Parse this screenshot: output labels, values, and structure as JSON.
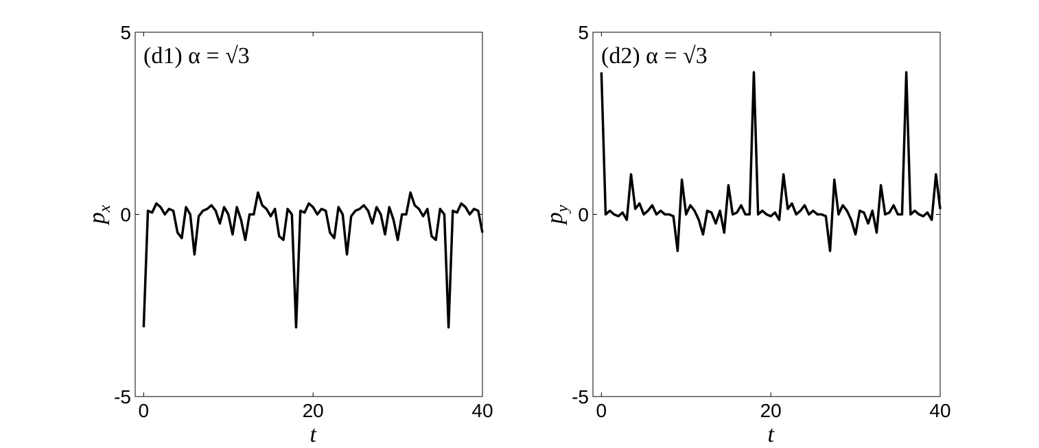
{
  "chart_data": [
    {
      "type": "line",
      "title": "(d1) α = √3",
      "xlabel": "t",
      "ylabel": {
        "text": "p",
        "subscript": "x"
      },
      "color": "#000000",
      "xlim": [
        -1,
        40
      ],
      "ylim": [
        -5,
        5
      ],
      "xticks": [
        0,
        20,
        40
      ],
      "yticks": [
        -5,
        0,
        5
      ],
      "x": [
        0,
        0.5,
        1,
        1.5,
        2,
        2.5,
        3,
        3.5,
        4,
        4.5,
        5,
        5.5,
        6,
        6.5,
        7,
        7.5,
        8,
        8.5,
        9,
        9.5,
        10,
        10.5,
        11,
        11.5,
        12,
        12.5,
        13,
        13.5,
        14,
        14.5,
        15,
        15.5,
        16,
        16.5,
        17,
        17.5,
        18,
        18.5,
        19,
        19.5,
        20,
        20.5,
        21,
        21.5,
        22,
        22.5,
        23,
        23.5,
        24,
        24.5,
        25,
        25.5,
        26,
        26.5,
        27,
        27.5,
        28,
        28.5,
        29,
        29.5,
        30,
        30.5,
        31,
        31.5,
        32,
        32.5,
        33,
        33.5,
        34,
        34.5,
        35,
        35.5,
        36,
        36.5,
        37,
        37.5,
        38,
        38.5,
        39,
        39.5,
        40
      ],
      "values": [
        -3.1,
        0.1,
        0.05,
        0.3,
        0.2,
        0.0,
        0.15,
        0.1,
        -0.5,
        -0.65,
        0.2,
        0.0,
        -1.1,
        -0.05,
        0.1,
        0.15,
        0.25,
        0.1,
        -0.25,
        0.2,
        0.0,
        -0.55,
        0.2,
        -0.15,
        -0.7,
        0.0,
        0.0,
        0.6,
        0.25,
        0.15,
        -0.05,
        0.15,
        -0.6,
        -0.7,
        0.15,
        0.0,
        -3.1,
        0.1,
        0.05,
        0.3,
        0.2,
        0.0,
        0.15,
        0.1,
        -0.5,
        -0.65,
        0.2,
        0.0,
        -1.1,
        -0.05,
        0.1,
        0.15,
        0.25,
        0.1,
        -0.25,
        0.2,
        0.0,
        -0.55,
        0.2,
        -0.15,
        -0.7,
        0.0,
        0.0,
        0.6,
        0.25,
        0.15,
        -0.05,
        0.15,
        -0.6,
        -0.7,
        0.15,
        0.0,
        -3.1,
        0.1,
        0.05,
        0.3,
        0.2,
        0.0,
        0.15,
        0.1,
        -0.5
      ]
    },
    {
      "type": "line",
      "title": "(d2) α = √3",
      "xlabel": "t",
      "ylabel": {
        "text": "p",
        "subscript": "y"
      },
      "color": "#000000",
      "xlim": [
        -1,
        40
      ],
      "ylim": [
        -5,
        5
      ],
      "xticks": [
        0,
        20,
        40
      ],
      "yticks": [
        -5,
        0,
        5
      ],
      "x": [
        0,
        0.5,
        1,
        1.5,
        2,
        2.5,
        3,
        3.5,
        4,
        4.5,
        5,
        5.5,
        6,
        6.5,
        7,
        7.5,
        8,
        8.5,
        9,
        9.5,
        10,
        10.5,
        11,
        11.5,
        12,
        12.5,
        13,
        13.5,
        14,
        14.5,
        15,
        15.5,
        16,
        16.5,
        17,
        17.5,
        18,
        18.5,
        19,
        19.5,
        20,
        20.5,
        21,
        21.5,
        22,
        22.5,
        23,
        23.5,
        24,
        24.5,
        25,
        25.5,
        26,
        26.5,
        27,
        27.5,
        28,
        28.5,
        29,
        29.5,
        30,
        30.5,
        31,
        31.5,
        32,
        32.5,
        33,
        33.5,
        34,
        34.5,
        35,
        35.5,
        36,
        36.5,
        37,
        37.5,
        38,
        38.5,
        39,
        39.5,
        40
      ],
      "values": [
        3.9,
        0.0,
        0.1,
        0.0,
        -0.05,
        0.05,
        -0.15,
        1.1,
        0.15,
        0.3,
        0.0,
        0.1,
        0.25,
        0.0,
        0.1,
        0.0,
        0.0,
        -0.05,
        -1.0,
        0.95,
        0.0,
        0.25,
        0.1,
        -0.15,
        -0.55,
        0.1,
        0.05,
        -0.25,
        0.1,
        -0.5,
        0.8,
        0.0,
        0.05,
        0.25,
        0.0,
        0.0,
        3.9,
        0.0,
        0.1,
        0.0,
        -0.05,
        0.05,
        -0.15,
        1.1,
        0.15,
        0.3,
        0.0,
        0.1,
        0.25,
        0.0,
        0.1,
        0.0,
        0.0,
        -0.05,
        -1.0,
        0.95,
        0.0,
        0.25,
        0.1,
        -0.15,
        -0.55,
        0.1,
        0.05,
        -0.25,
        0.1,
        -0.5,
        0.8,
        0.0,
        0.05,
        0.25,
        0.0,
        0.0,
        3.9,
        0.0,
        0.1,
        0.0,
        -0.05,
        0.05,
        -0.15,
        1.1,
        0.15
      ]
    }
  ]
}
